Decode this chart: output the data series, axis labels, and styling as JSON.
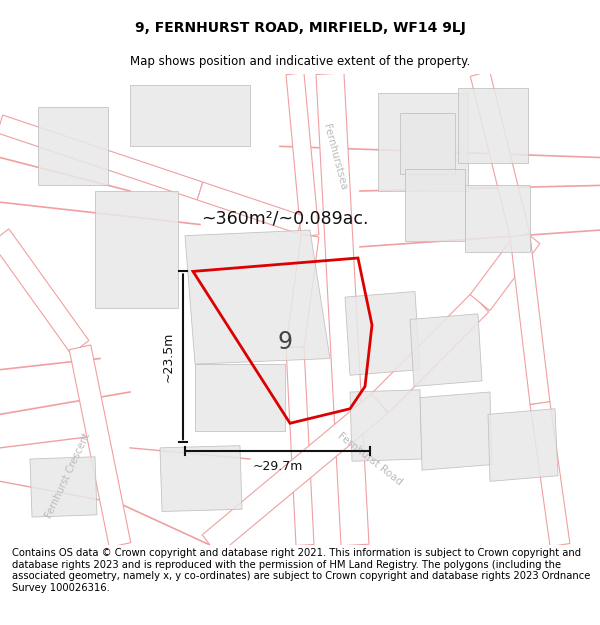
{
  "title": "9, FERNHURST ROAD, MIRFIELD, WF14 9LJ",
  "subtitle": "Map shows position and indicative extent of the property.",
  "disclaimer": "Contains OS data © Crown copyright and database right 2021. This information is subject to Crown copyright and database rights 2023 and is reproduced with the permission of HM Land Registry. The polygons (including the associated geometry, namely x, y co-ordinates) are subject to Crown copyright and database rights 2023 Ordnance Survey 100026316.",
  "area_text": "~360m²/~0.089ac.",
  "property_number": "9",
  "dim_vertical": "~23.5m",
  "dim_horizontal": "~29.7m",
  "map_bg": "#f8f8f8",
  "road_color": "#f0a0a0",
  "road_fill": "#faf0f0",
  "building_color_fill": "#e8e8e8",
  "building_color_edge": "#bbbbbb",
  "property_polygon_color": "#dd0000",
  "dim_line_color": "#111111",
  "road_label_color": "#bbbbbb",
  "title_fontsize": 10,
  "subtitle_fontsize": 8.5,
  "disclaimer_fontsize": 7.2
}
